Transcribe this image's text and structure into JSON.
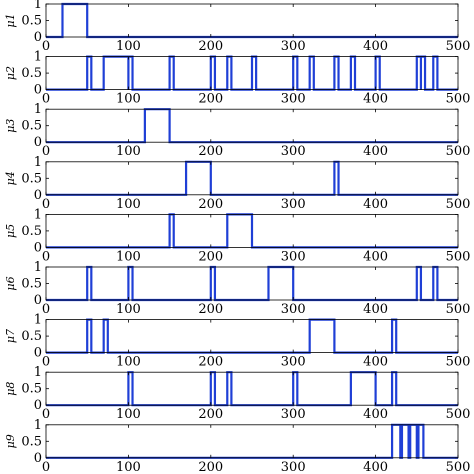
{
  "chart_data": {
    "type": "line",
    "line_color": "#1f3fd6",
    "grid": false,
    "xlim": [
      0,
      500
    ],
    "ylim": [
      0,
      1
    ],
    "x_ticks": [
      "0",
      "100",
      "200",
      "300",
      "400",
      "500"
    ],
    "y_ticks": [
      "0",
      "0.5",
      "1"
    ],
    "panels": [
      {
        "ylabel": "μ1",
        "pulses": [
          [
            20,
            50
          ]
        ]
      },
      {
        "ylabel": "μ2",
        "pulses": [
          [
            50,
            55
          ],
          [
            70,
            100
          ],
          [
            100,
            105
          ],
          [
            150,
            155
          ],
          [
            200,
            205
          ],
          [
            220,
            225
          ],
          [
            250,
            255
          ],
          [
            300,
            305
          ],
          [
            320,
            325
          ],
          [
            350,
            355
          ],
          [
            370,
            375
          ],
          [
            400,
            405
          ],
          [
            450,
            455
          ],
          [
            455,
            460
          ],
          [
            470,
            475
          ]
        ]
      },
      {
        "ylabel": "μ3",
        "pulses": [
          [
            120,
            150
          ]
        ]
      },
      {
        "ylabel": "μ4",
        "pulses": [
          [
            170,
            200
          ],
          [
            350,
            355
          ]
        ]
      },
      {
        "ylabel": "μ5",
        "pulses": [
          [
            150,
            155
          ],
          [
            220,
            250
          ]
        ]
      },
      {
        "ylabel": "μ6",
        "pulses": [
          [
            50,
            55
          ],
          [
            100,
            105
          ],
          [
            200,
            205
          ],
          [
            270,
            300
          ],
          [
            450,
            455
          ],
          [
            470,
            475
          ]
        ]
      },
      {
        "ylabel": "μ7",
        "pulses": [
          [
            50,
            55
          ],
          [
            70,
            75
          ],
          [
            320,
            350
          ],
          [
            420,
            425
          ]
        ]
      },
      {
        "ylabel": "μ8",
        "pulses": [
          [
            100,
            105
          ],
          [
            200,
            205
          ],
          [
            220,
            225
          ],
          [
            300,
            305
          ],
          [
            370,
            400
          ],
          [
            420,
            425
          ]
        ]
      },
      {
        "ylabel": "μ9",
        "pulses": [
          [
            420,
            430
          ],
          [
            432,
            440
          ],
          [
            442,
            450
          ],
          [
            452,
            458
          ]
        ]
      }
    ]
  }
}
